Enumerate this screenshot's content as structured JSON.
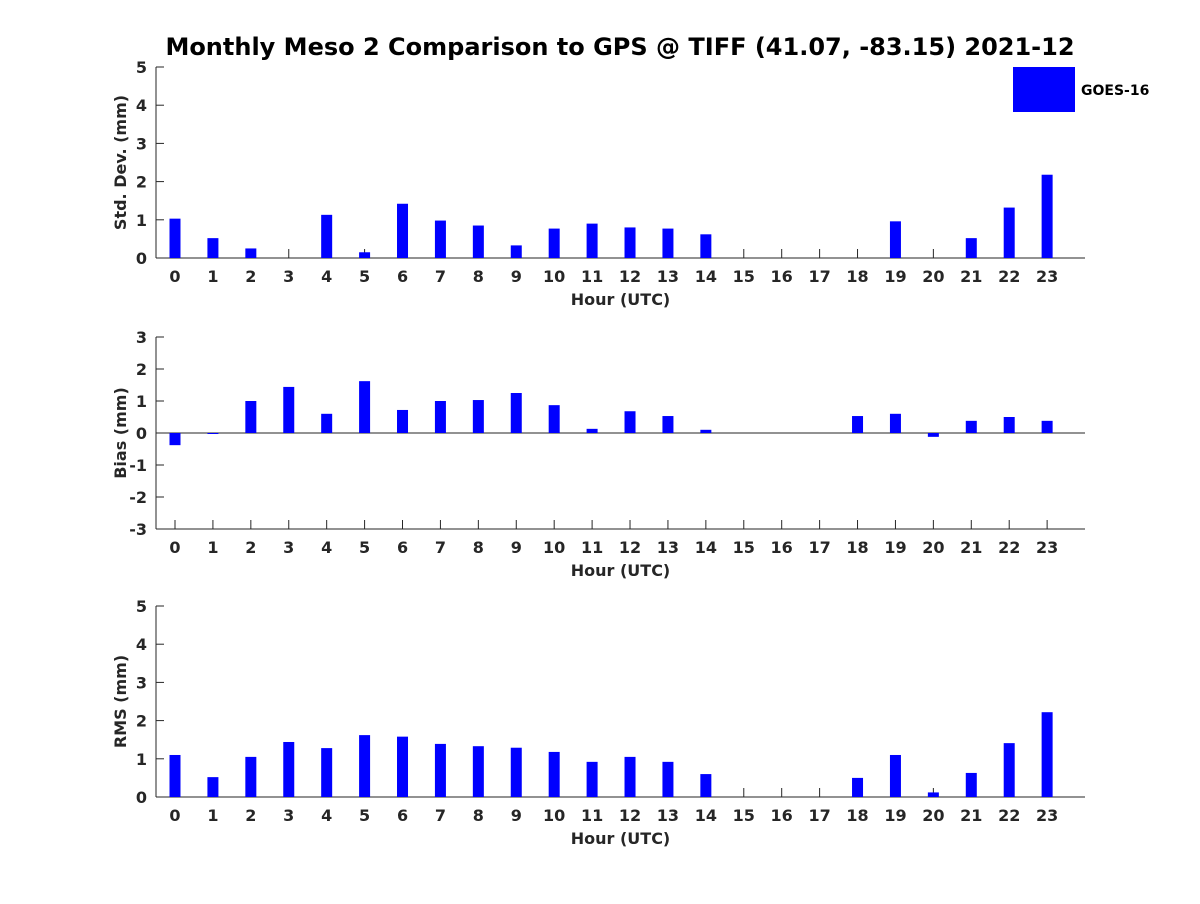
{
  "title": "Monthly Meso 2 Comparison to GPS @ TIFF (41.07, -83.15) 2021-12",
  "legend": {
    "label": "GOES-16",
    "color": "#0000ff",
    "placement": "top-right"
  },
  "colors": {
    "bar": "#0000ff",
    "axis": "#262626",
    "text": "#262626"
  },
  "chart_data": [
    {
      "type": "bar",
      "xlabel": "Hour (UTC)",
      "ylabel": "Std. Dev. (mm)",
      "ylim": [
        0,
        5
      ],
      "yticks": [
        0,
        1,
        2,
        3,
        4,
        5
      ],
      "categories": [
        "0",
        "1",
        "2",
        "3",
        "4",
        "5",
        "6",
        "7",
        "8",
        "9",
        "10",
        "11",
        "12",
        "13",
        "14",
        "15",
        "16",
        "17",
        "18",
        "19",
        "20",
        "21",
        "22",
        "23"
      ],
      "series": [
        {
          "name": "GOES-16",
          "values": [
            1.03,
            0.52,
            0.25,
            null,
            1.13,
            0.15,
            1.42,
            0.98,
            0.85,
            0.33,
            0.77,
            0.9,
            0.8,
            0.77,
            0.62,
            null,
            null,
            null,
            null,
            0.96,
            null,
            0.52,
            1.32,
            2.18
          ]
        }
      ],
      "grid": false
    },
    {
      "type": "bar",
      "xlabel": "Hour (UTC)",
      "ylabel": "Bias (mm)",
      "ylim": [
        -3,
        3
      ],
      "yticks": [
        -3,
        -2,
        -1,
        0,
        1,
        2,
        3
      ],
      "categories": [
        "0",
        "1",
        "2",
        "3",
        "4",
        "5",
        "6",
        "7",
        "8",
        "9",
        "10",
        "11",
        "12",
        "13",
        "14",
        "15",
        "16",
        "17",
        "18",
        "19",
        "20",
        "21",
        "22",
        "23"
      ],
      "series": [
        {
          "name": "GOES-16",
          "values": [
            -0.38,
            -0.02,
            1.0,
            1.44,
            0.6,
            1.62,
            0.72,
            1.0,
            1.03,
            1.25,
            0.87,
            0.13,
            0.68,
            0.53,
            0.1,
            null,
            null,
            null,
            0.53,
            0.6,
            -0.12,
            0.38,
            0.5,
            0.38
          ]
        }
      ],
      "grid": false
    },
    {
      "type": "bar",
      "xlabel": "Hour (UTC)",
      "ylabel": "RMS (mm)",
      "ylim": [
        0,
        5
      ],
      "yticks": [
        0,
        1,
        2,
        3,
        4,
        5
      ],
      "categories": [
        "0",
        "1",
        "2",
        "3",
        "4",
        "5",
        "6",
        "7",
        "8",
        "9",
        "10",
        "11",
        "12",
        "13",
        "14",
        "15",
        "16",
        "17",
        "18",
        "19",
        "20",
        "21",
        "22",
        "23"
      ],
      "series": [
        {
          "name": "GOES-16",
          "values": [
            1.1,
            0.52,
            1.05,
            1.44,
            1.28,
            1.62,
            1.58,
            1.39,
            1.33,
            1.29,
            1.18,
            0.92,
            1.05,
            0.92,
            0.6,
            null,
            null,
            null,
            0.5,
            1.1,
            0.12,
            0.63,
            1.41,
            2.22
          ]
        }
      ],
      "grid": false
    }
  ]
}
